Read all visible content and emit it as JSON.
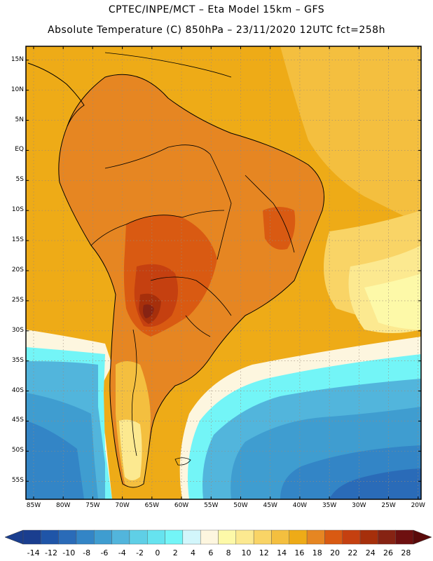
{
  "header": {
    "line1": "CPTEC/INPE/MCT –  Eta Model 15km – GFS",
    "line2": "Absolute Temperature (C) 850hPa – 23/11/2020 12UTC fct=258h"
  },
  "axes": {
    "lat_labels": [
      "15N",
      "10N",
      "5N",
      "EQ",
      "5S",
      "10S",
      "15S",
      "20S",
      "25S",
      "30S",
      "35S",
      "40S",
      "45S",
      "50S",
      "55S"
    ],
    "lat_values": [
      15,
      10,
      5,
      0,
      -5,
      -10,
      -15,
      -20,
      -25,
      -30,
      -35,
      -40,
      -45,
      -50,
      -55
    ],
    "lon_labels": [
      "85W",
      "80W",
      "75W",
      "70W",
      "65W",
      "60W",
      "55W",
      "50W",
      "45W",
      "40W",
      "35W",
      "30W",
      "25W",
      "20W"
    ],
    "lon_values": [
      -85,
      -80,
      -75,
      -70,
      -65,
      -60,
      -55,
      -50,
      -45,
      -40,
      -35,
      -30,
      -25,
      -20
    ]
  },
  "colorbar": {
    "labels": [
      "-14",
      "-12",
      "-10",
      "-8",
      "-6",
      "-4",
      "-2",
      "0",
      "2",
      "4",
      "6",
      "8",
      "10",
      "12",
      "14",
      "16",
      "18",
      "20",
      "22",
      "24",
      "26",
      "28"
    ],
    "colors": [
      "#1a3e8f",
      "#1f55a8",
      "#2a6bb8",
      "#3385c6",
      "#3f9dd0",
      "#52b5dc",
      "#5fcfe6",
      "#66e3ef",
      "#73f5f7",
      "#d2f6fb",
      "#fdf6df",
      "#fdf9a8",
      "#fce990",
      "#f9d466",
      "#f4bf3f",
      "#eeab17",
      "#e68622",
      "#d95a12",
      "#c54010",
      "#a62f0b",
      "#862313",
      "#6e1010"
    ],
    "low_color": "#1a3e8f",
    "high_color": "#5a0a0a"
  },
  "map_legend": {
    "units": "C",
    "variable": "Absolute Temperature",
    "level": "850hPa"
  }
}
